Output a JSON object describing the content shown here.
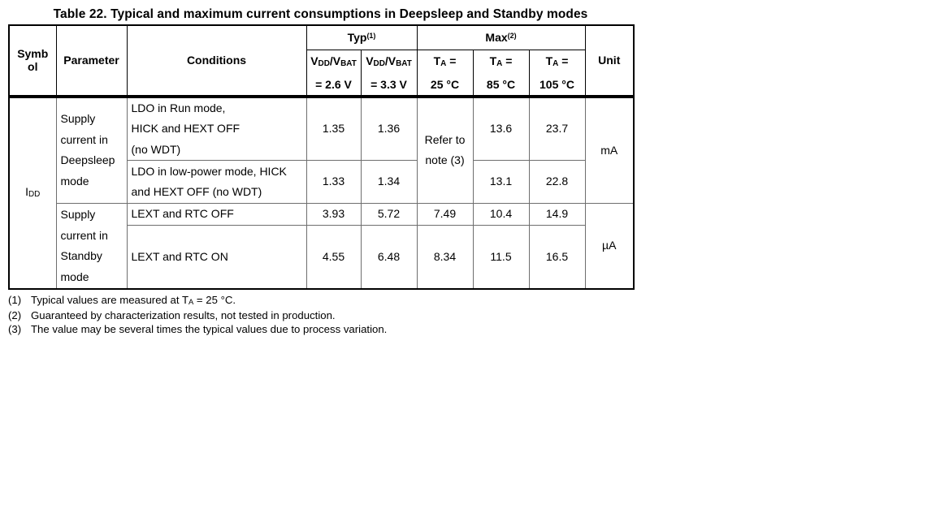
{
  "table": {
    "title": "Table 22. Typical and maximum current consumptions in Deepsleep and Standby modes",
    "header": {
      "symbol": "Symb\nol",
      "parameter": "Parameter",
      "conditions": "Conditions",
      "unit": "Unit",
      "typ_group": [
        {
          "t": "Typ"
        },
        {
          "t": "(1)",
          "s": "sup"
        }
      ],
      "max_group": [
        {
          "t": "Max"
        },
        {
          "t": "(2)",
          "s": "sup"
        }
      ],
      "sub_cols": [
        {
          "line1": [
            {
              "t": "V"
            },
            {
              "t": "DD",
              "s": "sub"
            },
            {
              "t": "/V"
            },
            {
              "t": "BAT",
              "s": "sub"
            }
          ],
          "line2": "= 2.6 V"
        },
        {
          "line1": [
            {
              "t": "V"
            },
            {
              "t": "DD",
              "s": "sub"
            },
            {
              "t": "/V"
            },
            {
              "t": "BAT",
              "s": "sub"
            }
          ],
          "line2": "= 3.3 V"
        },
        {
          "line1": [
            {
              "t": "T"
            },
            {
              "t": "A",
              "s": "sub"
            },
            {
              "t": " ="
            }
          ],
          "line2": "25 °C"
        },
        {
          "line1": [
            {
              "t": "T"
            },
            {
              "t": "A",
              "s": "sub"
            },
            {
              "t": " ="
            }
          ],
          "line2": "85 °C"
        },
        {
          "line1": [
            {
              "t": "T"
            },
            {
              "t": "A",
              "s": "sub"
            },
            {
              "t": " ="
            }
          ],
          "line2": "105 °C"
        }
      ]
    },
    "body": {
      "symbol": [
        {
          "t": "I"
        },
        {
          "t": "DD",
          "s": "sub"
        }
      ],
      "param_deepsleep": "Supply\ncurrent in\nDeepsleep\nmode",
      "param_standby": "Supply\ncurrent in\nStandby\nmode",
      "unit_deepsleep": "mA",
      "unit_standby": "µA",
      "rows": [
        {
          "conditions": "LDO in Run mode,\nHICK and HEXT OFF\n(no WDT)",
          "typ26": "1.35",
          "typ33": "1.36",
          "max25": "Refer to\nnote (3)",
          "max85": "13.6",
          "max105": "23.7"
        },
        {
          "conditions": "LDO in low-power mode, HICK\nand HEXT OFF (no WDT)",
          "typ26": "1.33",
          "typ33": "1.34",
          "max85": "13.1",
          "max105": "22.8"
        },
        {
          "conditions": "LEXT and RTC OFF",
          "typ26": "3.93",
          "typ33": "5.72",
          "max25": "7.49",
          "max85": "10.4",
          "max105": "14.9"
        },
        {
          "conditions": "LEXT and RTC ON",
          "typ26": "4.55",
          "typ33": "6.48",
          "max25": "8.34",
          "max85": "11.5",
          "max105": "16.5"
        }
      ]
    }
  },
  "footnotes": [
    {
      "num": "(1)",
      "text": [
        {
          "t": "Typical values are measured at T"
        },
        {
          "t": "A",
          "s": "sub"
        },
        {
          "t": " = 25 °C."
        }
      ]
    },
    {
      "num": "(2)",
      "text": [
        {
          "t": "Guaranteed by characterization results, not tested in production."
        }
      ]
    },
    {
      "num": "(3)",
      "text": [
        {
          "t": "The value may be several times the typical values due to process variation."
        }
      ]
    }
  ]
}
